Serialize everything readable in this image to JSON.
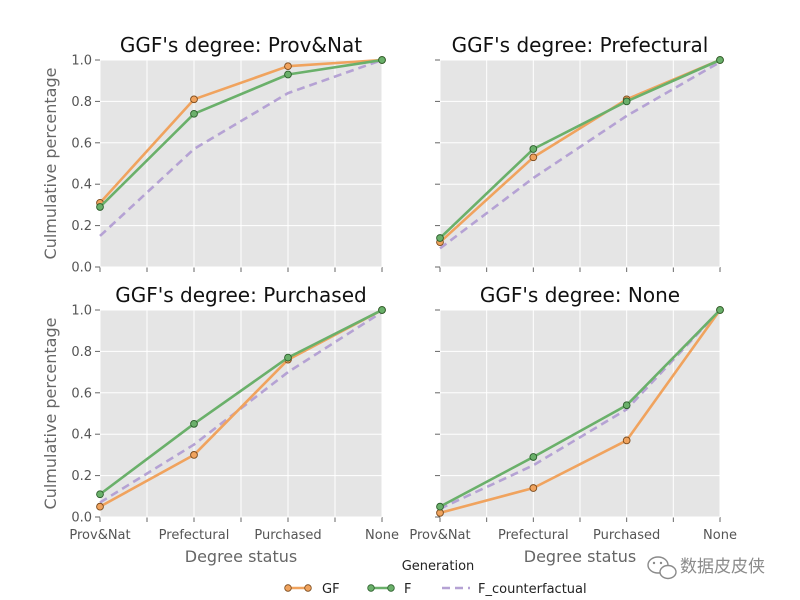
{
  "chart_data": [
    {
      "type": "line",
      "title": "GGF's degree: Prov&Nat",
      "categories": [
        "Prov&Nat",
        "Prefectural",
        "Purchased",
        "None"
      ],
      "ylabel": "Culmulative percentage",
      "xlabel": "",
      "ylim": [
        0.0,
        1.0
      ],
      "yticks": [
        "0.0",
        "0.2",
        "0.4",
        "0.6",
        "0.8",
        "1.0"
      ],
      "series": [
        {
          "name": "GF",
          "values": [
            0.31,
            0.81,
            0.97,
            1.0
          ]
        },
        {
          "name": "F",
          "values": [
            0.29,
            0.74,
            0.93,
            1.0
          ]
        },
        {
          "name": "F_counterfactual",
          "values": [
            0.15,
            0.57,
            0.84,
            1.0
          ]
        }
      ]
    },
    {
      "type": "line",
      "title": "GGF's degree: Prefectural",
      "categories": [
        "Prov&Nat",
        "Prefectural",
        "Purchased",
        "None"
      ],
      "ylabel": "",
      "xlabel": "",
      "ylim": [
        0.0,
        1.0
      ],
      "series": [
        {
          "name": "GF",
          "values": [
            0.12,
            0.53,
            0.81,
            1.0
          ]
        },
        {
          "name": "F",
          "values": [
            0.14,
            0.57,
            0.8,
            1.0
          ]
        },
        {
          "name": "F_counterfactual",
          "values": [
            0.09,
            0.43,
            0.73,
            0.99
          ]
        }
      ]
    },
    {
      "type": "line",
      "title": "GGF's degree: Purchased",
      "categories": [
        "Prov&Nat",
        "Prefectural",
        "Purchased",
        "None"
      ],
      "ylabel": "Culmulative percentage",
      "xlabel": "Degree status",
      "ylim": [
        0.0,
        1.0
      ],
      "yticks": [
        "0.0",
        "0.2",
        "0.4",
        "0.6",
        "0.8",
        "1.0"
      ],
      "series": [
        {
          "name": "GF",
          "values": [
            0.05,
            0.3,
            0.76,
            1.0
          ]
        },
        {
          "name": "F",
          "values": [
            0.11,
            0.45,
            0.77,
            1.0
          ]
        },
        {
          "name": "F_counterfactual",
          "values": [
            0.07,
            0.35,
            0.7,
            0.99
          ]
        }
      ]
    },
    {
      "type": "line",
      "title": "GGF's degree: None",
      "categories": [
        "Prov&Nat",
        "Prefectural",
        "Purchased",
        "None"
      ],
      "ylabel": "",
      "xlabel": "Degree status",
      "ylim": [
        0.0,
        1.0
      ],
      "series": [
        {
          "name": "GF",
          "values": [
            0.02,
            0.14,
            0.37,
            1.0
          ]
        },
        {
          "name": "F",
          "values": [
            0.05,
            0.29,
            0.54,
            1.0
          ]
        },
        {
          "name": "F_counterfactual",
          "values": [
            0.04,
            0.25,
            0.52,
            1.0
          ]
        }
      ]
    }
  ],
  "legend": {
    "title": "Generation",
    "entries": [
      "GF",
      "F",
      "F_counterfactual"
    ]
  },
  "colors": {
    "GF": "#f0a35e",
    "GF_marker_edge": "#7a4a1c",
    "F": "#6ab06a",
    "F_marker_edge": "#2c5e2c",
    "F_counterfactual": "#b5a2d4",
    "panel_bg": "#e5e5e5",
    "grid": "#ffffff"
  },
  "watermark": "数据皮皮侠"
}
